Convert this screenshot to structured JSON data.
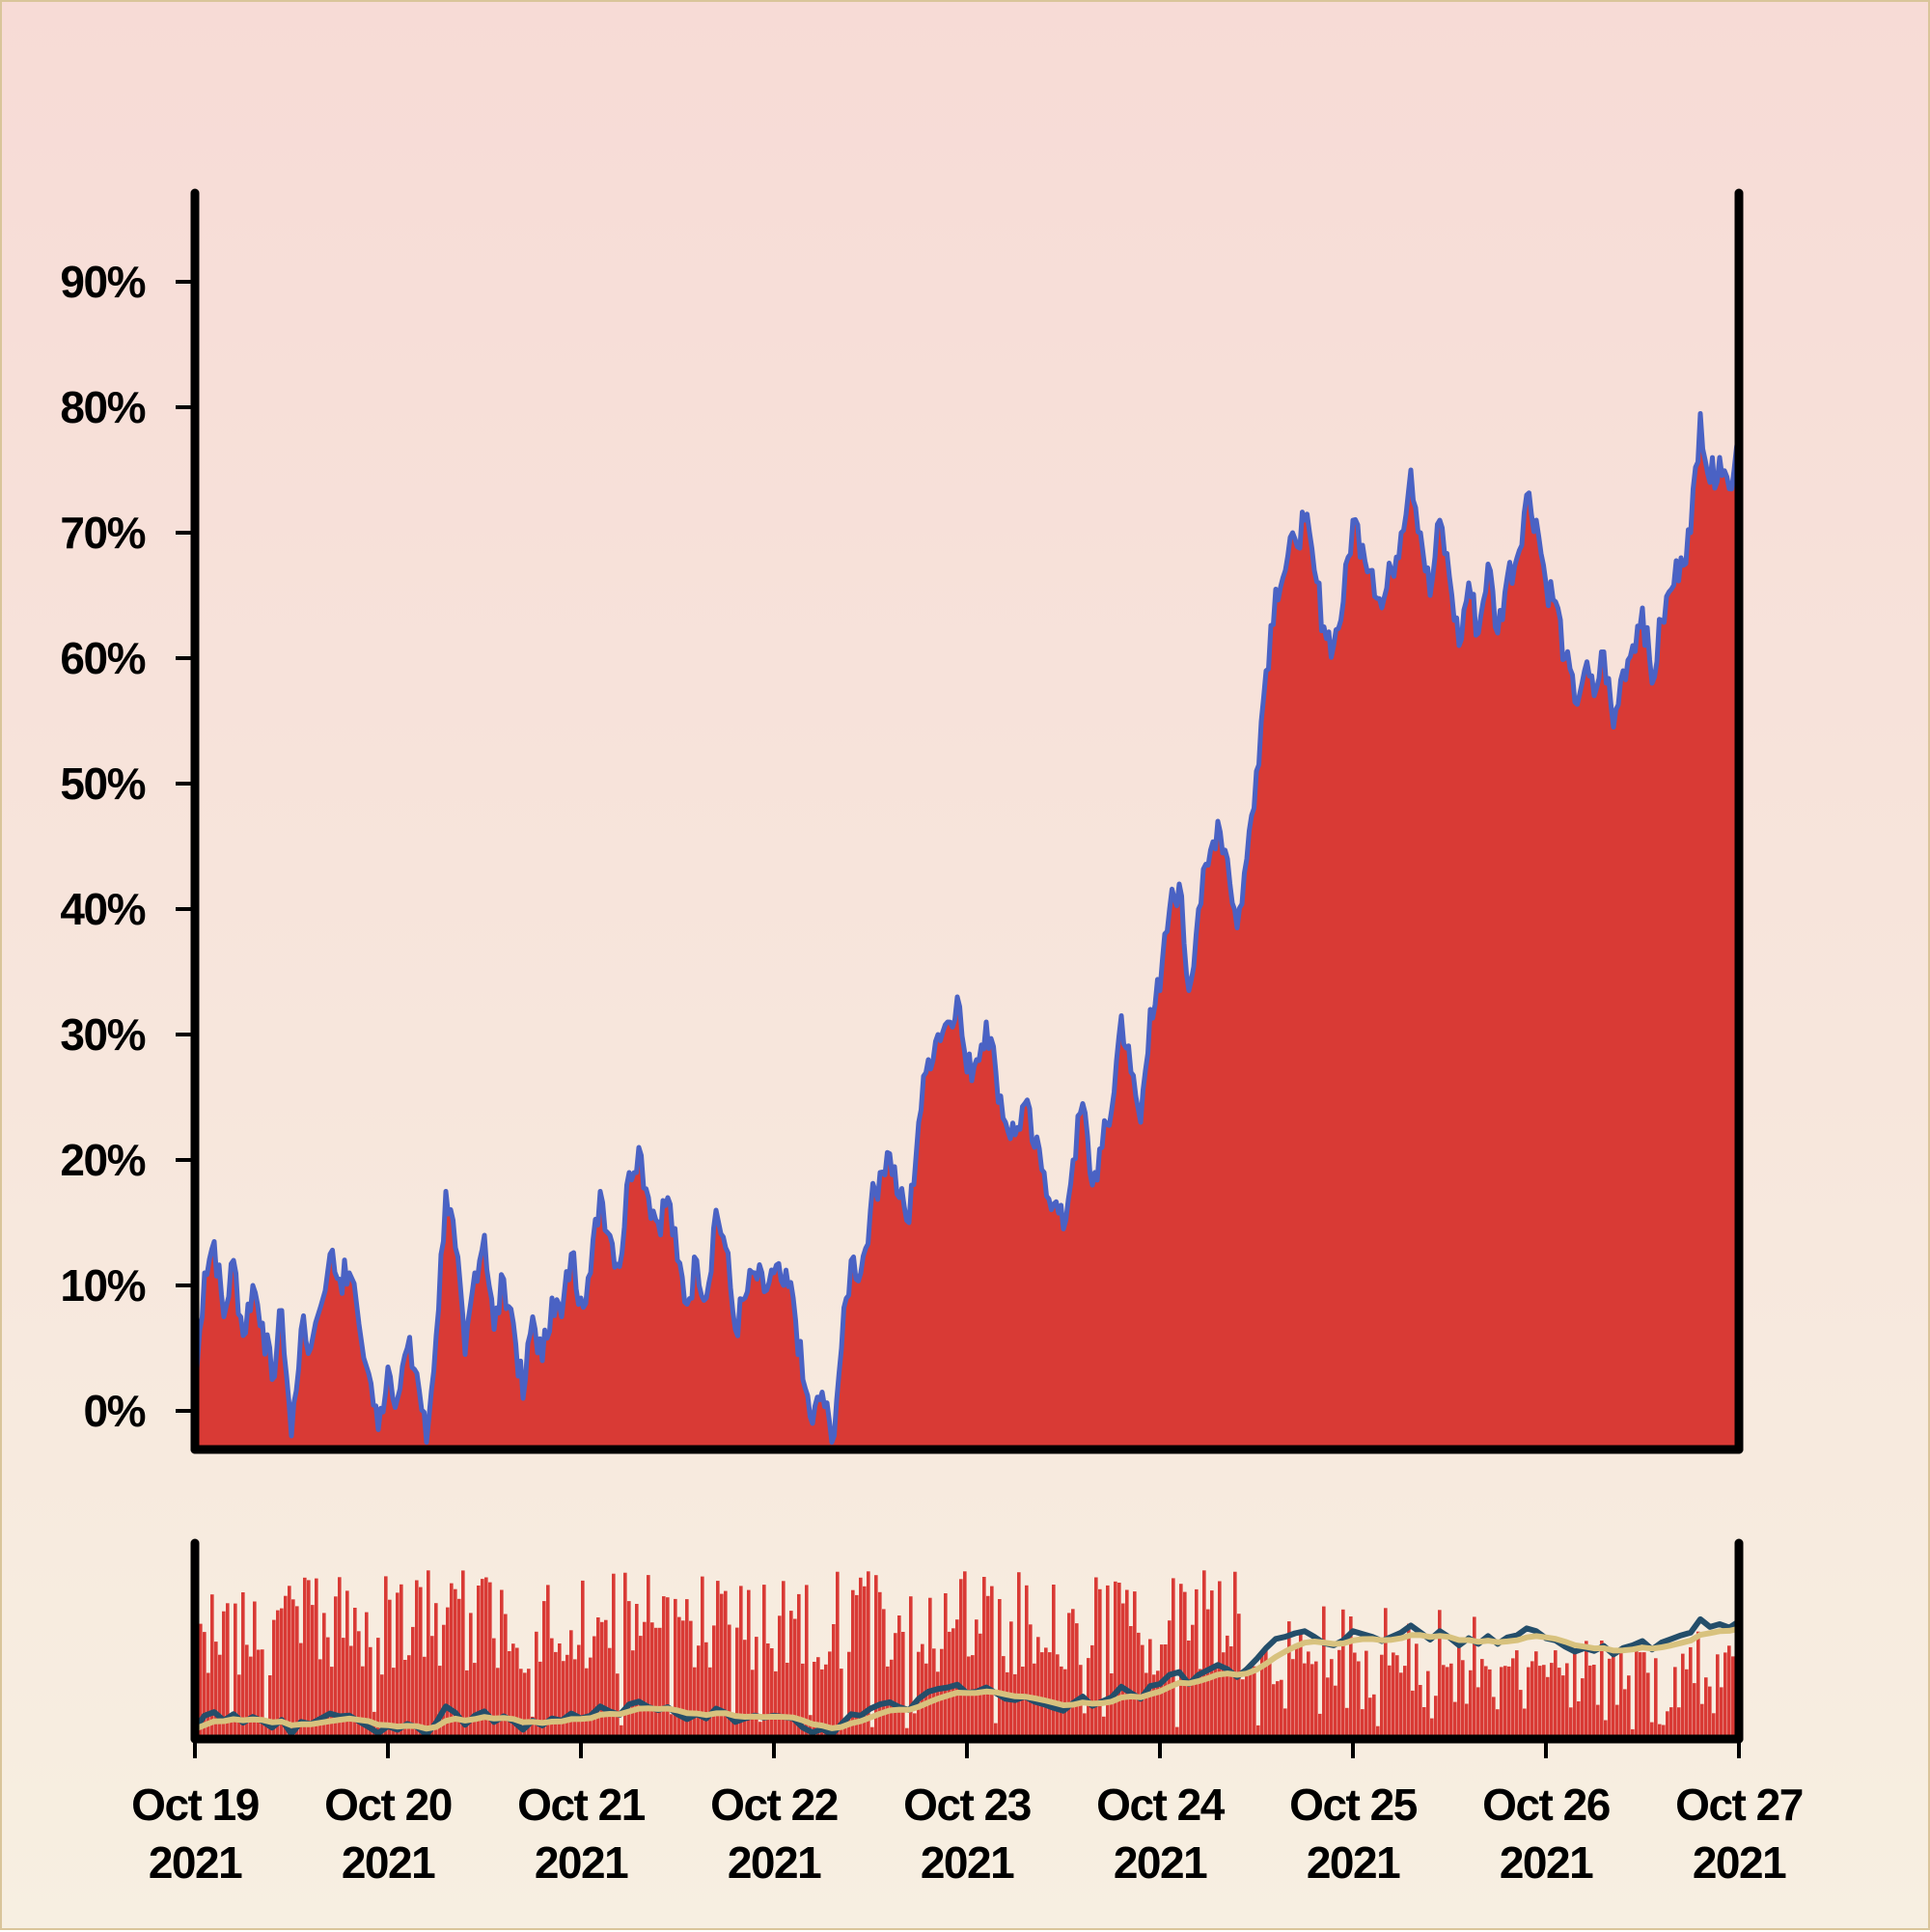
{
  "chart_data": {
    "type": "area",
    "title": "",
    "xlabel": "",
    "ylabel": "",
    "x_range": [
      "2021-10-19",
      "2021-10-27"
    ],
    "ylim": [
      -2.5,
      97
    ],
    "y_tick_values": [
      0,
      10,
      20,
      30,
      40,
      50,
      60,
      70,
      80,
      90
    ],
    "y_tick_labels": [
      "0%",
      "10%",
      "20%",
      "30%",
      "40%",
      "50%",
      "60%",
      "70%",
      "80%",
      "90%"
    ],
    "x_tick_labels": [
      {
        "date": "Oct 19",
        "year": "2021"
      },
      {
        "date": "Oct 20",
        "year": "2021"
      },
      {
        "date": "Oct 21",
        "year": "2021"
      },
      {
        "date": "Oct 22",
        "year": "2021"
      },
      {
        "date": "Oct 23",
        "year": "2021"
      },
      {
        "date": "Oct 24",
        "year": "2021"
      },
      {
        "date": "Oct 25",
        "year": "2021"
      },
      {
        "date": "Oct 26",
        "year": "2021"
      },
      {
        "date": "Oct 27",
        "year": "2021"
      }
    ],
    "grid": false,
    "legend": "none",
    "series": [
      {
        "values": [
          [
            0.0,
            1.5
          ],
          [
            0.05,
            11
          ],
          [
            0.1,
            13.5
          ],
          [
            0.15,
            7.5
          ],
          [
            0.2,
            12
          ],
          [
            0.25,
            6
          ],
          [
            0.3,
            10
          ],
          [
            0.35,
            7
          ],
          [
            0.4,
            2.5
          ],
          [
            0.45,
            8
          ],
          [
            0.5,
            -2
          ],
          [
            0.55,
            6.5
          ],
          [
            0.6,
            5
          ],
          [
            0.7,
            12.5
          ],
          [
            0.75,
            10.5
          ],
          [
            0.8,
            11
          ],
          [
            0.9,
            3
          ],
          [
            0.95,
            -1.5
          ],
          [
            1.0,
            3.5
          ],
          [
            1.05,
            1
          ],
          [
            1.1,
            5
          ],
          [
            1.15,
            3
          ],
          [
            1.2,
            -2.5
          ],
          [
            1.25,
            6
          ],
          [
            1.3,
            17.5
          ],
          [
            1.35,
            13
          ],
          [
            1.4,
            4.5
          ],
          [
            1.45,
            11
          ],
          [
            1.5,
            14
          ],
          [
            1.55,
            6.5
          ],
          [
            1.6,
            10.5
          ],
          [
            1.65,
            7
          ],
          [
            1.7,
            1
          ],
          [
            1.75,
            7.5
          ],
          [
            1.8,
            4
          ],
          [
            1.85,
            9
          ],
          [
            1.9,
            7.5
          ],
          [
            1.95,
            12.5
          ],
          [
            2.0,
            9
          ],
          [
            2.05,
            11
          ],
          [
            2.1,
            17.5
          ],
          [
            2.15,
            14
          ],
          [
            2.2,
            11.5
          ],
          [
            2.25,
            19
          ],
          [
            2.3,
            21
          ],
          [
            2.35,
            17
          ],
          [
            2.4,
            15
          ],
          [
            2.45,
            17
          ],
          [
            2.5,
            12
          ],
          [
            2.55,
            8.5
          ],
          [
            2.6,
            12
          ],
          [
            2.65,
            9
          ],
          [
            2.7,
            16
          ],
          [
            2.75,
            13
          ],
          [
            2.8,
            6.5
          ],
          [
            2.85,
            9
          ],
          [
            2.9,
            11
          ],
          [
            2.95,
            9.5
          ],
          [
            3.0,
            11
          ],
          [
            3.05,
            10
          ],
          [
            3.1,
            9
          ],
          [
            3.15,
            2.5
          ],
          [
            3.2,
            -1
          ],
          [
            3.25,
            1.5
          ],
          [
            3.3,
            -2.5
          ],
          [
            3.35,
            5
          ],
          [
            3.4,
            12
          ],
          [
            3.45,
            11
          ],
          [
            3.5,
            16
          ],
          [
            3.55,
            19
          ],
          [
            3.6,
            20.5
          ],
          [
            3.65,
            17
          ],
          [
            3.7,
            15
          ],
          [
            3.75,
            23
          ],
          [
            3.8,
            28
          ],
          [
            3.85,
            30
          ],
          [
            3.9,
            31
          ],
          [
            3.95,
            33
          ],
          [
            4.0,
            27
          ],
          [
            4.05,
            28
          ],
          [
            4.1,
            31
          ],
          [
            4.15,
            27
          ],
          [
            4.2,
            23
          ],
          [
            4.25,
            22
          ],
          [
            4.3,
            24.5
          ],
          [
            4.35,
            21
          ],
          [
            4.4,
            19
          ],
          [
            4.45,
            16.5
          ],
          [
            4.5,
            14.5
          ],
          [
            4.55,
            20
          ],
          [
            4.6,
            24.5
          ],
          [
            4.65,
            18
          ],
          [
            4.7,
            21
          ],
          [
            4.75,
            24
          ],
          [
            4.8,
            31.5
          ],
          [
            4.85,
            27
          ],
          [
            4.9,
            23
          ],
          [
            4.95,
            32
          ],
          [
            5.0,
            33.5
          ],
          [
            5.05,
            40
          ],
          [
            5.1,
            42
          ],
          [
            5.15,
            33.5
          ],
          [
            5.2,
            40
          ],
          [
            5.25,
            43.5
          ],
          [
            5.3,
            47
          ],
          [
            5.35,
            44
          ],
          [
            5.4,
            38.5
          ],
          [
            5.45,
            44
          ],
          [
            5.5,
            51
          ],
          [
            5.55,
            59
          ],
          [
            5.6,
            65.5
          ],
          [
            5.65,
            67
          ],
          [
            5.7,
            69.5
          ],
          [
            5.75,
            71
          ],
          [
            5.8,
            67
          ],
          [
            5.85,
            62.5
          ],
          [
            5.9,
            61
          ],
          [
            5.95,
            64.5
          ],
          [
            6.0,
            71
          ],
          [
            6.05,
            69
          ],
          [
            6.1,
            67
          ],
          [
            6.15,
            64
          ],
          [
            6.2,
            67
          ],
          [
            6.25,
            70
          ],
          [
            6.3,
            75
          ],
          [
            6.35,
            70
          ],
          [
            6.4,
            65
          ],
          [
            6.45,
            71
          ],
          [
            6.5,
            66.5
          ],
          [
            6.55,
            61
          ],
          [
            6.6,
            66
          ],
          [
            6.65,
            62
          ],
          [
            6.7,
            67.5
          ],
          [
            6.75,
            62
          ],
          [
            6.8,
            66.5
          ],
          [
            6.85,
            68
          ],
          [
            6.9,
            73
          ],
          [
            6.95,
            71
          ],
          [
            7.0,
            66
          ],
          [
            7.05,
            64.5
          ],
          [
            7.1,
            60
          ],
          [
            7.15,
            56.5
          ],
          [
            7.2,
            59
          ],
          [
            7.25,
            57
          ],
          [
            7.3,
            60.5
          ],
          [
            7.35,
            54.5
          ],
          [
            7.4,
            59
          ],
          [
            7.45,
            61
          ],
          [
            7.5,
            64
          ],
          [
            7.55,
            58
          ],
          [
            7.6,
            63
          ],
          [
            7.65,
            65.5
          ],
          [
            7.7,
            68
          ],
          [
            7.75,
            70
          ],
          [
            7.8,
            79.5
          ],
          [
            7.85,
            74
          ],
          [
            7.9,
            76
          ],
          [
            7.95,
            73.5
          ],
          [
            8.0,
            78
          ],
          [
            8.05,
            75.5
          ],
          [
            8.1,
            72
          ],
          [
            8.15,
            69
          ],
          [
            8.2,
            64
          ]
        ]
      }
    ],
    "colors": {
      "area_fill": "#d93a35",
      "area_line": "#4a62c4",
      "axis": "#000000",
      "overview_line_dark": "#244e6a",
      "overview_line_light": "#d8c27e",
      "page_border": "#d9c59a"
    }
  }
}
